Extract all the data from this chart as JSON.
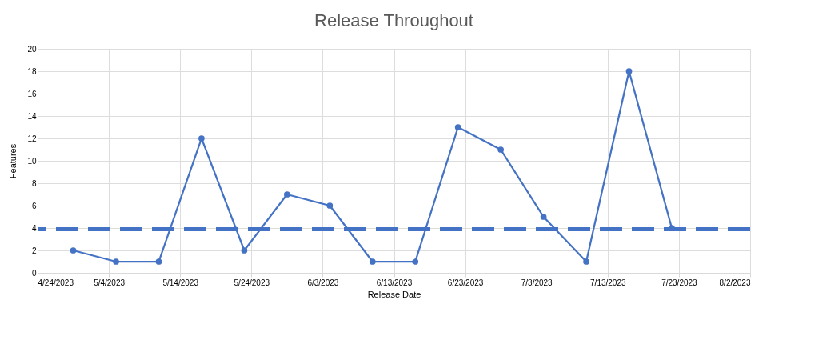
{
  "chart_data": {
    "type": "line",
    "title": "Release Throughout",
    "xlabel": "Release Date",
    "ylabel": "Features",
    "x": [
      "2023-04-29",
      "2023-05-05",
      "2023-05-11",
      "2023-05-17",
      "2023-05-23",
      "2023-05-29",
      "2023-06-04",
      "2023-06-10",
      "2023-06-16",
      "2023-06-22",
      "2023-06-28",
      "2023-07-04",
      "2023-07-10",
      "2023-07-16",
      "2023-07-22"
    ],
    "series": [
      {
        "color": "#4472c4",
        "values": [
          2,
          1,
          1,
          12,
          2,
          7,
          6,
          1,
          1,
          13,
          11,
          5,
          1,
          18,
          4
        ]
      }
    ],
    "xlim": [
      "2023-04-24",
      "2023-08-02"
    ],
    "xticks": [
      {
        "value": "2023-04-24",
        "label": "4/24/2023"
      },
      {
        "value": "2023-05-04",
        "label": "5/4/2023"
      },
      {
        "value": "2023-05-14",
        "label": "5/14/2023"
      },
      {
        "value": "2023-05-24",
        "label": "5/24/2023"
      },
      {
        "value": "2023-06-03",
        "label": "6/3/2023"
      },
      {
        "value": "2023-06-13",
        "label": "6/13/2023"
      },
      {
        "value": "2023-06-23",
        "label": "6/23/2023"
      },
      {
        "value": "2023-07-03",
        "label": "7/3/2023"
      },
      {
        "value": "2023-07-13",
        "label": "7/13/2023"
      },
      {
        "value": "2023-07-23",
        "label": "7/23/2023"
      },
      {
        "value": "2023-08-02",
        "label": "8/2/2023"
      }
    ],
    "ylim": [
      0,
      20
    ],
    "yticks": [
      0,
      2,
      4,
      6,
      8,
      10,
      12,
      14,
      16,
      18,
      20
    ],
    "ref_lines": [
      {
        "axis": "y",
        "value": 3.9,
        "color": "#4472c4",
        "line_style": "dashed"
      }
    ],
    "grid": true,
    "marker": "circle",
    "line_style": "solid"
  }
}
